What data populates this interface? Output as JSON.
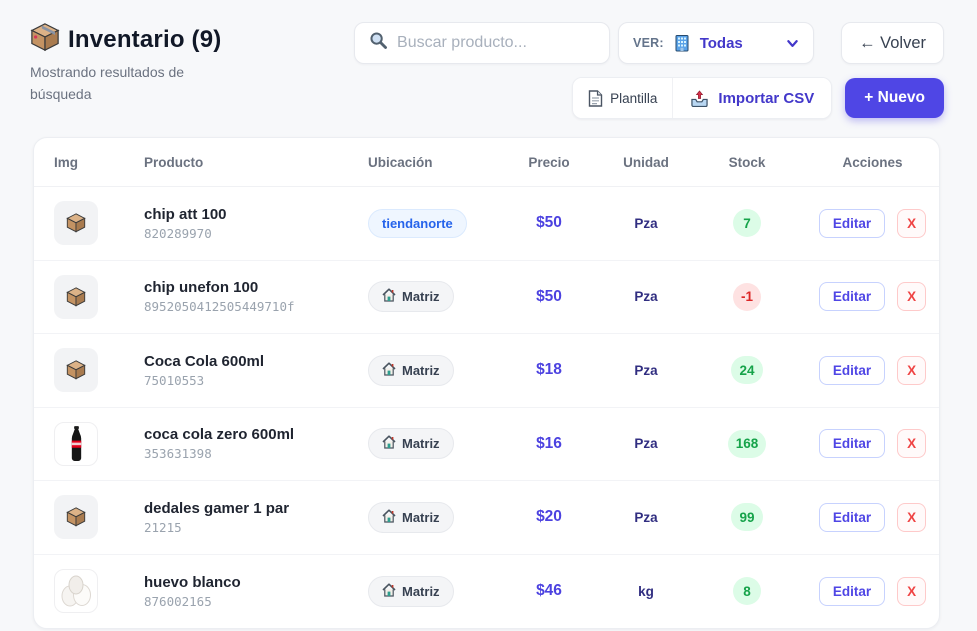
{
  "header": {
    "title": "Inventario (9)",
    "title_icon": "package-box",
    "subtitle": "Mostrando resultados de búsqueda",
    "search": {
      "placeholder": "Buscar producto...",
      "icon": "magnifier"
    },
    "ver": {
      "label": "VER:",
      "value": "Todas",
      "icon": "office-building"
    },
    "volver_label": "← Volver",
    "plantilla_label": "Plantilla",
    "importar_label": "Importar CSV",
    "nuevo_label": "+ Nuevo"
  },
  "colors": {
    "accent_indigo": "#4f46e5",
    "price_indigo": "#4c42e0",
    "unit_navy": "#312e81",
    "stock_green_text": "#16a34a",
    "stock_green_bg": "#dcfce7",
    "stock_red_text": "#dc2626",
    "stock_red_bg": "#fee2e2",
    "store_badge_blue": "#2563eb",
    "page_bg": "#f7f8fa"
  },
  "table": {
    "columns": [
      "Img",
      "Producto",
      "Ubicación",
      "Precio",
      "Unidad",
      "Stock",
      "Acciones"
    ],
    "actions": {
      "edit_label": "Editar",
      "delete_label": "X"
    },
    "rows": [
      {
        "img": "box",
        "name": "chip att 100",
        "sku": "820289970",
        "location": "tiendanorte",
        "location_type": "store",
        "price": "$50",
        "unit": "Pza",
        "stock": "7",
        "stock_state": "pos"
      },
      {
        "img": "box",
        "name": "chip unefon 100",
        "sku": "8952050412505449710f",
        "location": "Matriz",
        "location_type": "matriz",
        "price": "$50",
        "unit": "Pza",
        "stock": "-1",
        "stock_state": "neg"
      },
      {
        "img": "box",
        "name": "Coca Cola 600ml",
        "sku": "75010553",
        "location": "Matriz",
        "location_type": "matriz",
        "price": "$18",
        "unit": "Pza",
        "stock": "24",
        "stock_state": "pos"
      },
      {
        "img": "bottle",
        "name": "coca cola zero 600ml",
        "sku": "353631398",
        "location": "Matriz",
        "location_type": "matriz",
        "price": "$16",
        "unit": "Pza",
        "stock": "168",
        "stock_state": "pos"
      },
      {
        "img": "box",
        "name": "dedales gamer 1 par",
        "sku": "21215",
        "location": "Matriz",
        "location_type": "matriz",
        "price": "$20",
        "unit": "Pza",
        "stock": "99",
        "stock_state": "pos"
      },
      {
        "img": "eggs",
        "name": "huevo blanco",
        "sku": "876002165",
        "location": "Matriz",
        "location_type": "matriz",
        "price": "$46",
        "unit": "kg",
        "stock": "8",
        "stock_state": "pos"
      }
    ]
  }
}
